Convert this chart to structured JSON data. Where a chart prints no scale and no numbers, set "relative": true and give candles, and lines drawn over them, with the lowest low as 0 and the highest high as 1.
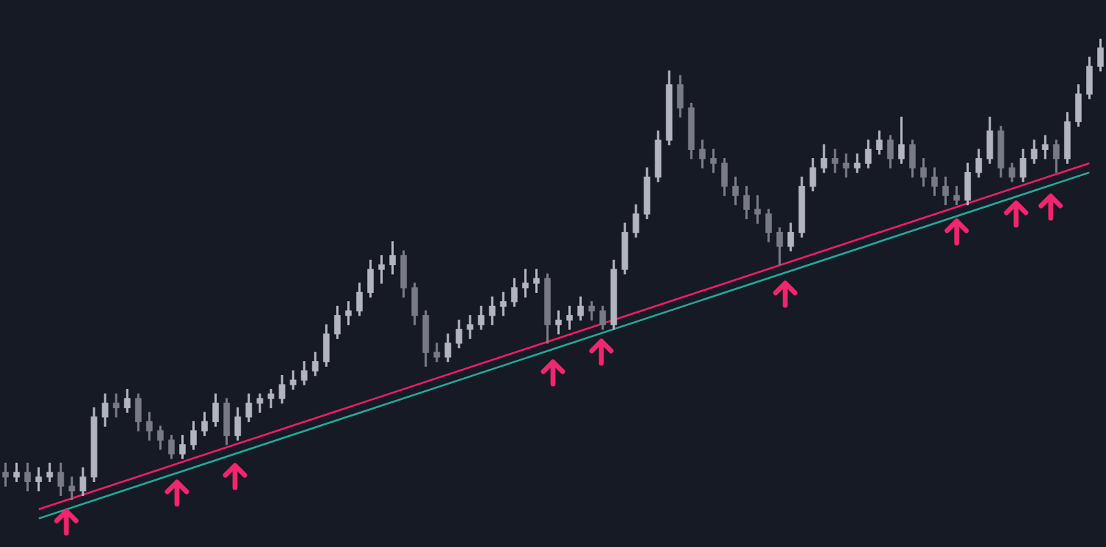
{
  "chart_data": {
    "type": "candlestick",
    "relative": true,
    "tick_labels": false,
    "colors": [
      "#787b86",
      "#b2b5be",
      "#787b86",
      "#b2b5be",
      "#b2b5be",
      "#787b86",
      "#787b86",
      "#b2b5be",
      "#b2b5be",
      "#b2b5be",
      "#787b86",
      "#b2b5be",
      "#787b86",
      "#787b86",
      "#787b86",
      "#787b86",
      "#b2b5be",
      "#b2b5be",
      "#b2b5be",
      "#b2b5be",
      "#787b86",
      "#b2b5be",
      "#b2b5be",
      "#b2b5be",
      "#b2b5be",
      "#b2b5be",
      "#b2b5be",
      "#b2b5be",
      "#b2b5be",
      "#b2b5be",
      "#b2b5be",
      "#b2b5be",
      "#b2b5be",
      "#b2b5be",
      "#b2b5be",
      "#b2b5be",
      "#787b86",
      "#787b86",
      "#787b86",
      "#787b86",
      "#b2b5be",
      "#b2b5be",
      "#b2b5be",
      "#b2b5be",
      "#b2b5be",
      "#b2b5be",
      "#b2b5be",
      "#b2b5be",
      "#b2b5be",
      "#787b86",
      "#b2b5be",
      "#b2b5be",
      "#b2b5be",
      "#787b86",
      "#787b86",
      "#b2b5be",
      "#b2b5be",
      "#b2b5be",
      "#b2b5be",
      "#b2b5be",
      "#b2b5be",
      "#787b86",
      "#787b86",
      "#787b86",
      "#787b86",
      "#787b86",
      "#787b86",
      "#787b86",
      "#787b86",
      "#787b86",
      "#787b86",
      "#b2b5be",
      "#b2b5be",
      "#b2b5be",
      "#b2b5be",
      "#787b86",
      "#787b86",
      "#b2b5be",
      "#b2b5be",
      "#b2b5be",
      "#787b86",
      "#b2b5be",
      "#787b86",
      "#787b86",
      "#787b86",
      "#787b86",
      "#787b86",
      "#b2b5be",
      "#b2b5be",
      "#b2b5be",
      "#787b86",
      "#787b86",
      "#b2b5be",
      "#b2b5be",
      "#b2b5be",
      "#787b86",
      "#b2b5be",
      "#b2b5be",
      "#b2b5be",
      "#b2b5be"
    ],
    "categories": [
      null,
      null,
      null,
      null,
      null,
      null,
      null,
      null,
      null,
      null,
      null,
      null,
      null,
      null,
      null,
      null,
      null,
      null,
      null,
      null,
      null,
      null,
      null,
      null,
      null,
      null,
      null,
      null,
      null,
      null,
      null,
      null,
      null,
      null,
      null,
      null,
      null,
      null,
      null,
      null,
      null,
      null,
      null,
      null,
      null,
      null,
      null,
      null,
      null,
      null,
      null,
      null,
      null,
      null,
      null,
      null,
      null,
      null,
      null,
      null,
      null,
      null,
      null,
      null,
      null,
      null,
      null,
      null,
      null,
      null,
      null,
      null,
      null,
      null,
      null,
      null,
      null,
      null,
      null,
      null,
      null,
      null,
      null,
      null,
      null,
      null,
      null,
      null,
      null,
      null,
      null,
      null,
      null,
      null,
      null,
      null,
      null,
      null,
      null,
      null
    ],
    "ohlc": [
      [
        0.06,
        0.08,
        0.03,
        0.05
      ],
      [
        0.05,
        0.08,
        0.04,
        0.06
      ],
      [
        0.06,
        0.08,
        0.02,
        0.04
      ],
      [
        0.04,
        0.07,
        0.02,
        0.05
      ],
      [
        0.05,
        0.08,
        0.04,
        0.06
      ],
      [
        0.06,
        0.08,
        0.01,
        0.03
      ],
      [
        0.03,
        0.05,
        0,
        0.02
      ],
      [
        0.02,
        0.07,
        0.01,
        0.05
      ],
      [
        0.05,
        0.2,
        0.04,
        0.18
      ],
      [
        0.18,
        0.23,
        0.16,
        0.21
      ],
      [
        0.21,
        0.23,
        0.18,
        0.2
      ],
      [
        0.2,
        0.24,
        0.19,
        0.22
      ],
      [
        0.22,
        0.23,
        0.15,
        0.17
      ],
      [
        0.17,
        0.19,
        0.13,
        0.15
      ],
      [
        0.15,
        0.16,
        0.11,
        0.13
      ],
      [
        0.13,
        0.14,
        0.09,
        0.1
      ],
      [
        0.1,
        0.14,
        0.09,
        0.12
      ],
      [
        0.12,
        0.17,
        0.11,
        0.15
      ],
      [
        0.15,
        0.19,
        0.14,
        0.17
      ],
      [
        0.17,
        0.23,
        0.16,
        0.21
      ],
      [
        0.21,
        0.22,
        0.12,
        0.14
      ],
      [
        0.14,
        0.2,
        0.13,
        0.18
      ],
      [
        0.18,
        0.23,
        0.17,
        0.21
      ],
      [
        0.21,
        0.23,
        0.19,
        0.22
      ],
      [
        0.22,
        0.24,
        0.2,
        0.23
      ],
      [
        0.22,
        0.27,
        0.21,
        0.25
      ],
      [
        0.25,
        0.28,
        0.24,
        0.26
      ],
      [
        0.26,
        0.3,
        0.25,
        0.28
      ],
      [
        0.28,
        0.32,
        0.27,
        0.3
      ],
      [
        0.3,
        0.38,
        0.29,
        0.36
      ],
      [
        0.36,
        0.42,
        0.35,
        0.4
      ],
      [
        0.4,
        0.43,
        0.38,
        0.41
      ],
      [
        0.41,
        0.47,
        0.4,
        0.45
      ],
      [
        0.45,
        0.52,
        0.44,
        0.5
      ],
      [
        0.5,
        0.53,
        0.47,
        0.51
      ],
      [
        0.51,
        0.56,
        0.49,
        0.53
      ],
      [
        0.53,
        0.54,
        0.44,
        0.46
      ],
      [
        0.46,
        0.47,
        0.38,
        0.4
      ],
      [
        0.4,
        0.41,
        0.29,
        0.32
      ],
      [
        0.32,
        0.34,
        0.3,
        0.31
      ],
      [
        0.31,
        0.36,
        0.3,
        0.34
      ],
      [
        0.34,
        0.39,
        0.33,
        0.37
      ],
      [
        0.37,
        0.4,
        0.35,
        0.38
      ],
      [
        0.38,
        0.42,
        0.37,
        0.4
      ],
      [
        0.4,
        0.44,
        0.38,
        0.42
      ],
      [
        0.42,
        0.45,
        0.4,
        0.43
      ],
      [
        0.43,
        0.48,
        0.42,
        0.46
      ],
      [
        0.46,
        0.5,
        0.44,
        0.47
      ],
      [
        0.47,
        0.5,
        0.45,
        0.48
      ],
      [
        0.48,
        0.49,
        0.34,
        0.38
      ],
      [
        0.38,
        0.41,
        0.36,
        0.39
      ],
      [
        0.39,
        0.42,
        0.37,
        0.4
      ],
      [
        0.4,
        0.44,
        0.39,
        0.42
      ],
      [
        0.42,
        0.43,
        0.39,
        0.41
      ],
      [
        0.41,
        0.42,
        0.37,
        0.38
      ],
      [
        0.38,
        0.52,
        0.37,
        0.5
      ],
      [
        0.5,
        0.6,
        0.49,
        0.58
      ],
      [
        0.58,
        0.64,
        0.57,
        0.62
      ],
      [
        0.62,
        0.72,
        0.61,
        0.7
      ],
      [
        0.7,
        0.8,
        0.69,
        0.78
      ],
      [
        0.78,
        0.93,
        0.77,
        0.9
      ],
      [
        0.9,
        0.92,
        0.83,
        0.85
      ],
      [
        0.85,
        0.86,
        0.74,
        0.76
      ],
      [
        0.76,
        0.78,
        0.72,
        0.74
      ],
      [
        0.74,
        0.76,
        0.71,
        0.73
      ],
      [
        0.73,
        0.74,
        0.66,
        0.68
      ],
      [
        0.68,
        0.7,
        0.64,
        0.66
      ],
      [
        0.66,
        0.68,
        0.61,
        0.63
      ],
      [
        0.63,
        0.66,
        0.6,
        0.62
      ],
      [
        0.62,
        0.63,
        0.56,
        0.58
      ],
      [
        0.58,
        0.59,
        0.51,
        0.55
      ],
      [
        0.55,
        0.6,
        0.54,
        0.58
      ],
      [
        0.58,
        0.7,
        0.57,
        0.68
      ],
      [
        0.68,
        0.74,
        0.67,
        0.72
      ],
      [
        0.72,
        0.77,
        0.71,
        0.74
      ],
      [
        0.74,
        0.76,
        0.71,
        0.73
      ],
      [
        0.73,
        0.75,
        0.7,
        0.72
      ],
      [
        0.72,
        0.75,
        0.71,
        0.73
      ],
      [
        0.73,
        0.78,
        0.72,
        0.76
      ],
      [
        0.76,
        0.8,
        0.75,
        0.78
      ],
      [
        0.78,
        0.79,
        0.72,
        0.74
      ],
      [
        0.74,
        0.83,
        0.73,
        0.77
      ],
      [
        0.77,
        0.78,
        0.7,
        0.72
      ],
      [
        0.72,
        0.74,
        0.68,
        0.7
      ],
      [
        0.7,
        0.72,
        0.66,
        0.68
      ],
      [
        0.68,
        0.7,
        0.64,
        0.66
      ],
      [
        0.66,
        0.68,
        0.64,
        0.65
      ],
      [
        0.65,
        0.73,
        0.64,
        0.71
      ],
      [
        0.71,
        0.76,
        0.7,
        0.74
      ],
      [
        0.74,
        0.83,
        0.73,
        0.8
      ],
      [
        0.8,
        0.81,
        0.7,
        0.72
      ],
      [
        0.72,
        0.73,
        0.69,
        0.7
      ],
      [
        0.7,
        0.76,
        0.69,
        0.74
      ],
      [
        0.74,
        0.78,
        0.73,
        0.76
      ],
      [
        0.76,
        0.79,
        0.74,
        0.77
      ],
      [
        0.77,
        0.78,
        0.71,
        0.74
      ],
      [
        0.74,
        0.84,
        0.73,
        0.82
      ],
      [
        0.82,
        0.9,
        0.81,
        0.88
      ],
      [
        0.88,
        0.96,
        0.87,
        0.94
      ],
      [
        0.94,
        1,
        0.93,
        0.98
      ]
    ],
    "series": [
      {
        "type": "line",
        "color": "#e91e63",
        "values": [
          null,
          null,
          null,
          -0.02,
          null,
          null,
          null,
          null,
          null,
          null,
          null,
          null,
          null,
          null,
          null,
          null,
          null,
          null,
          null,
          null,
          null,
          null,
          null,
          null,
          null,
          null,
          null,
          null,
          null,
          null,
          null,
          null,
          null,
          null,
          null,
          null,
          null,
          null,
          null,
          null,
          null,
          null,
          null,
          null,
          null,
          null,
          null,
          null,
          null,
          null,
          null,
          null,
          null,
          null,
          null,
          null,
          null,
          null,
          null,
          null,
          null,
          null,
          null,
          null,
          null,
          null,
          null,
          null,
          null,
          null,
          null,
          null,
          null,
          null,
          null,
          null,
          null,
          null,
          null,
          null,
          null,
          null,
          null,
          null,
          null,
          null,
          null,
          null,
          null,
          null,
          null,
          null,
          null,
          null,
          null,
          null,
          null,
          null,
          0.73,
          null
        ]
      },
      {
        "type": "line",
        "color": "#26a69a",
        "values": [
          null,
          null,
          null,
          -0.04,
          null,
          null,
          null,
          null,
          null,
          null,
          null,
          null,
          null,
          null,
          null,
          null,
          null,
          null,
          null,
          null,
          null,
          null,
          null,
          null,
          null,
          null,
          null,
          null,
          null,
          null,
          null,
          null,
          null,
          null,
          null,
          null,
          null,
          null,
          null,
          null,
          null,
          null,
          null,
          null,
          null,
          null,
          null,
          null,
          null,
          null,
          null,
          null,
          null,
          null,
          null,
          null,
          null,
          null,
          null,
          null,
          null,
          null,
          null,
          null,
          null,
          null,
          null,
          null,
          null,
          null,
          null,
          null,
          null,
          null,
          null,
          null,
          null,
          null,
          null,
          null,
          null,
          null,
          null,
          null,
          null,
          null,
          null,
          null,
          null,
          null,
          null,
          null,
          null,
          null,
          null,
          null,
          null,
          null,
          0.71,
          null
        ]
      }
    ]
  }
}
